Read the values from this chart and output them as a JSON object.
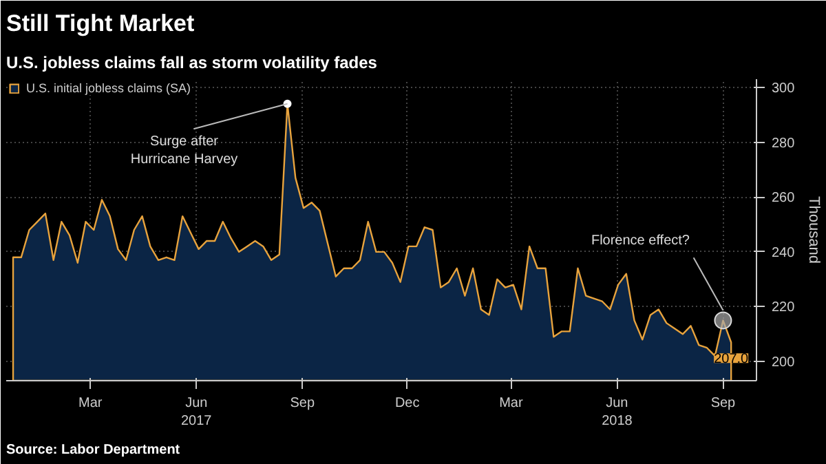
{
  "chart_data": {
    "type": "area",
    "title": "Still Tight Market",
    "subtitle": "U.S. jobless claims fall as storm volatility fades",
    "ylabel": "Thousand",
    "x": [
      "2017-01-07",
      "2017-01-14",
      "2017-01-21",
      "2017-01-28",
      "2017-02-04",
      "2017-02-11",
      "2017-02-18",
      "2017-02-25",
      "2017-03-04",
      "2017-03-11",
      "2017-03-18",
      "2017-03-25",
      "2017-04-01",
      "2017-04-08",
      "2017-04-15",
      "2017-04-22",
      "2017-04-29",
      "2017-05-06",
      "2017-05-13",
      "2017-05-20",
      "2017-05-27",
      "2017-06-03",
      "2017-06-10",
      "2017-06-17",
      "2017-06-24",
      "2017-07-01",
      "2017-07-08",
      "2017-07-15",
      "2017-07-22",
      "2017-07-29",
      "2017-08-05",
      "2017-08-12",
      "2017-08-19",
      "2017-08-26",
      "2017-09-02",
      "2017-09-09",
      "2017-09-16",
      "2017-09-23",
      "2017-09-30",
      "2017-10-07",
      "2017-10-14",
      "2017-10-21",
      "2017-10-28",
      "2017-11-04",
      "2017-11-11",
      "2017-11-18",
      "2017-11-25",
      "2017-12-02",
      "2017-12-09",
      "2017-12-16",
      "2017-12-23",
      "2017-12-30",
      "2018-01-06",
      "2018-01-13",
      "2018-01-20",
      "2018-01-27",
      "2018-02-03",
      "2018-02-10",
      "2018-02-17",
      "2018-02-24",
      "2018-03-03",
      "2018-03-10",
      "2018-03-17",
      "2018-03-24",
      "2018-03-31",
      "2018-04-07",
      "2018-04-14",
      "2018-04-21",
      "2018-04-28",
      "2018-05-05",
      "2018-05-12",
      "2018-05-19",
      "2018-05-26",
      "2018-06-02",
      "2018-06-09",
      "2018-06-16",
      "2018-06-23",
      "2018-06-30",
      "2018-07-07",
      "2018-07-14",
      "2018-07-21",
      "2018-07-28",
      "2018-08-04",
      "2018-08-11",
      "2018-08-18",
      "2018-08-25",
      "2018-09-01",
      "2018-09-08",
      "2018-09-15",
      "2018-09-22"
    ],
    "series": [
      {
        "name": "U.S. initial jobless claims (SA)",
        "color": "#e8a33d",
        "values": [
          238,
          238,
          248,
          251,
          254,
          237,
          251,
          246,
          236,
          251,
          248,
          259,
          253,
          241,
          237,
          248,
          253,
          242,
          237,
          238,
          237,
          253,
          247,
          241,
          244,
          244,
          251,
          245,
          240,
          242,
          244,
          242,
          237,
          239,
          294,
          267,
          256,
          258,
          255,
          243,
          231,
          234,
          234,
          237,
          251,
          240,
          240,
          236,
          229,
          242,
          242,
          249,
          248,
          227,
          229,
          234,
          224,
          234,
          219,
          217,
          230,
          227,
          228,
          219,
          242,
          234,
          234,
          209,
          211,
          211,
          234,
          224,
          223,
          222,
          219,
          228,
          232,
          215,
          208,
          217,
          219,
          214,
          212,
          210,
          213,
          206,
          205,
          202,
          215,
          207
        ],
        "value_labels": [
          null,
          null,
          null,
          null,
          null,
          null,
          null,
          null,
          null,
          null,
          null,
          null,
          null,
          null,
          null,
          null,
          null,
          null,
          null,
          null,
          null,
          null,
          null,
          null,
          null,
          null,
          null,
          null,
          null,
          null,
          null,
          null,
          null,
          null,
          null,
          null,
          null,
          null,
          null,
          null,
          null,
          null,
          null,
          null,
          null,
          null,
          null,
          null,
          null,
          null,
          null,
          null,
          null,
          null,
          null,
          null,
          null,
          null,
          null,
          null,
          null,
          null,
          null,
          null,
          null,
          null,
          null,
          null,
          null,
          null,
          null,
          null,
          null,
          null,
          null,
          null,
          null,
          null,
          null,
          null,
          null,
          null,
          null,
          null,
          null,
          null,
          null,
          null,
          null,
          "207.0"
        ]
      }
    ],
    "xlim": [
      "2017-01-01",
      "2018-10-14"
    ],
    "xticks": [
      {
        "value": "2017-03-15",
        "label": "Mar"
      },
      {
        "value": "2017-06-15",
        "label": "Jun\n2017"
      },
      {
        "value": "2017-09-15",
        "label": "Sep"
      },
      {
        "value": "2017-12-15",
        "label": "Dec"
      },
      {
        "value": "2018-03-15",
        "label": "Mar"
      },
      {
        "value": "2018-06-15",
        "label": "Jun\n2018"
      },
      {
        "value": "2018-09-15",
        "label": "Sep"
      }
    ],
    "ylim": [
      193,
      303
    ],
    "yticks": [
      200,
      220,
      240,
      260,
      280,
      300
    ],
    "grid": true,
    "legend": "top left",
    "annotations": [
      {
        "text": "Surge after\nHurricane Harvey",
        "x": "2017-09-02",
        "y": 294
      },
      {
        "text": "Florence effect?",
        "x": "2018-09-15",
        "y": 215
      },
      "Source: Labor Department"
    ]
  }
}
